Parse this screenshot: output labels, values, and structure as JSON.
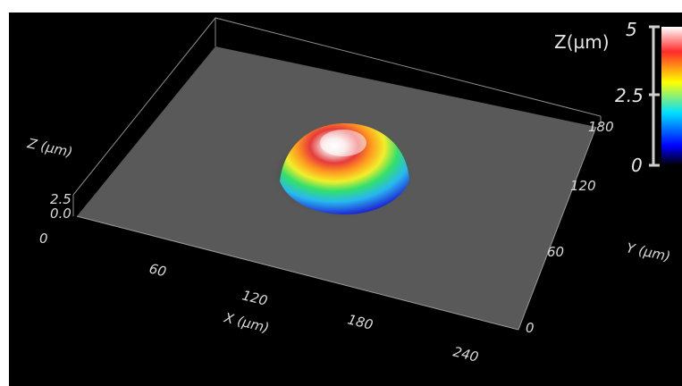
{
  "plot": {
    "z_axis_label": "Z (µm)",
    "z_ticks": [
      "2.5",
      "0.0",
      "0"
    ],
    "x_axis_label": "X (µm)",
    "x_ticks": [
      "60",
      "120",
      "180",
      "240"
    ],
    "y_axis_label": "Y (µm)",
    "y_ticks": [
      "180",
      "120",
      "60",
      "0"
    ]
  },
  "colorbar": {
    "title": "Z(µm)",
    "ticks": [
      "5",
      "2.5",
      "0"
    ],
    "colors": [
      "#ffffff",
      "#ff2a2a",
      "#ffff00",
      "#00e0ff",
      "#0000ff",
      "#000000"
    ]
  },
  "surface": {
    "plane_color": "#595959",
    "bump_colors": [
      "#ffffff",
      "#e63a3a",
      "#ff9a1f",
      "#f2ee2a",
      "#34e06a",
      "#28b8f0",
      "#1e2fd6"
    ]
  }
}
